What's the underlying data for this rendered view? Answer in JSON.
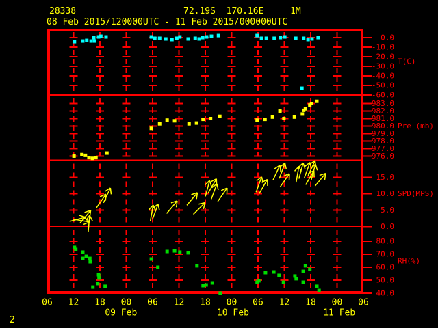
{
  "header": {
    "station_id": "28338",
    "location": "72.19S  170.16E",
    "elevation": "1M",
    "time_range": "08 Feb 2015/120000UTC - 11 Feb 2015/000000UTC"
  },
  "page_number": "2",
  "colors": {
    "background": "#000000",
    "frame": "#ff0000",
    "header_text": "#ffff00",
    "axis_text": "#ff0000",
    "temperature": "#00ffff",
    "pressure": "#ffff00",
    "wind": "#ffff00",
    "rh": "#00dd00"
  },
  "chart_data": {
    "type": "scatter",
    "title": "Surface meteogram station 28338",
    "x_axis": {
      "tlim": [
        6,
        78
      ],
      "tick_step_hours": 6,
      "tick_labels": [
        "06",
        "12",
        "18",
        "00",
        "06",
        "12",
        "18",
        "00",
        "06",
        "12",
        "18",
        "00",
        "06"
      ],
      "date_labels": [
        {
          "t": 22.8,
          "label": "09 Feb"
        },
        {
          "t": 48.3,
          "label": "10 Feb"
        },
        {
          "t": 72.5,
          "label": "11 Feb"
        }
      ]
    },
    "panels": [
      {
        "id": "temperature",
        "unit_label": "T(C)",
        "unit_label_level": -25,
        "ylim": [
          -60,
          9.3
        ],
        "yticks": [
          {
            "v": 0,
            "label": "0.0"
          },
          {
            "v": -10,
            "label": "-10.0"
          },
          {
            "v": -20,
            "label": "-20.0"
          },
          {
            "v": -30,
            "label": "-30.0"
          },
          {
            "v": -40,
            "label": "-40.0"
          },
          {
            "v": -50,
            "label": "-50.0"
          },
          {
            "v": -60,
            "label": "-60.0"
          }
        ],
        "style": "points",
        "color": "#00ffff",
        "points": [
          [
            12.2,
            -4.3
          ],
          [
            14.1,
            -3.6
          ],
          [
            15.0,
            -2.9
          ],
          [
            16.0,
            -3.6
          ],
          [
            16.8,
            -3.6
          ],
          [
            16.6,
            0.0
          ],
          [
            17.7,
            0.7
          ],
          [
            18.2,
            1.4
          ],
          [
            19.4,
            0.7
          ],
          [
            29.7,
            0.7
          ],
          [
            30.5,
            -0.7
          ],
          [
            31.6,
            -0.7
          ],
          [
            33.0,
            -1.4
          ],
          [
            34.4,
            -2.1
          ],
          [
            35.5,
            -0.7
          ],
          [
            36.2,
            0.7
          ],
          [
            38.1,
            -1.4
          ],
          [
            39.7,
            -0.7
          ],
          [
            40.6,
            -1.4
          ],
          [
            41.4,
            0.0
          ],
          [
            42.3,
            0.7
          ],
          [
            43.4,
            1.4
          ],
          [
            45.0,
            2.1
          ],
          [
            53.8,
            2.1
          ],
          [
            54.8,
            -0.7
          ],
          [
            55.9,
            -0.7
          ],
          [
            57.7,
            -0.7
          ],
          [
            59.1,
            0.0
          ],
          [
            60.1,
            0.7
          ],
          [
            62.6,
            -0.7
          ],
          [
            64.4,
            -0.7
          ],
          [
            65.4,
            -2.1
          ],
          [
            66.3,
            -1.4
          ],
          [
            67.7,
            0.0
          ],
          [
            64.0,
            -52.9
          ]
        ]
      },
      {
        "id": "pressure",
        "unit_label": "Pre (mb)",
        "unit_label_level": 980,
        "ylim": [
          975.45,
          984.14
        ],
        "yticks": [
          {
            "v": 983,
            "label": "983.0"
          },
          {
            "v": 982,
            "label": "982.0"
          },
          {
            "v": 981,
            "label": "981.0"
          },
          {
            "v": 980,
            "label": "980.0"
          },
          {
            "v": 979,
            "label": "979.0"
          },
          {
            "v": 978,
            "label": "978.0"
          },
          {
            "v": 977,
            "label": "977.0"
          },
          {
            "v": 976,
            "label": "976.0"
          }
        ],
        "style": "points",
        "color": "#ffff00",
        "points": [
          [
            12.1,
            976.0
          ],
          [
            13.9,
            976.2
          ],
          [
            14.7,
            976.1
          ],
          [
            15.5,
            975.8
          ],
          [
            16.3,
            975.7
          ],
          [
            17.1,
            975.8
          ],
          [
            19.6,
            976.4
          ],
          [
            29.7,
            979.7
          ],
          [
            31.6,
            980.3
          ],
          [
            33.3,
            980.8
          ],
          [
            35.0,
            980.7
          ],
          [
            38.3,
            980.3
          ],
          [
            40.0,
            980.4
          ],
          [
            41.5,
            980.9
          ],
          [
            43.2,
            981.0
          ],
          [
            45.3,
            981.3
          ],
          [
            53.8,
            980.8
          ],
          [
            55.6,
            980.9
          ],
          [
            57.3,
            981.2
          ],
          [
            59.0,
            982.0
          ],
          [
            59.9,
            981.0
          ],
          [
            62.3,
            981.2
          ],
          [
            64.1,
            981.6
          ],
          [
            64.4,
            982.1
          ],
          [
            64.8,
            982.3
          ],
          [
            65.8,
            982.8
          ],
          [
            66.2,
            983.0
          ],
          [
            67.4,
            983.3
          ]
        ]
      },
      {
        "id": "wind-speed",
        "unit_label": "SPD(MPS)",
        "unit_label_level": 10,
        "ylim": [
          0.1,
          20.21
        ],
        "yticks": [
          {
            "v": 15,
            "label": "15.0"
          },
          {
            "v": 10,
            "label": "10.0"
          },
          {
            "v": 5,
            "label": "5.0"
          },
          {
            "v": 0,
            "label": "0.0"
          }
        ],
        "style": "arrows",
        "color": "#ffff00",
        "arrows": [
          [
            12.9,
            2.2,
            75
          ],
          [
            13.8,
            1.8,
            100
          ],
          [
            14.7,
            3.0,
            40
          ],
          [
            15.5,
            0.9,
            5
          ],
          [
            18.3,
            7.8,
            35
          ],
          [
            19.6,
            9.5,
            25
          ],
          [
            29.8,
            4.1,
            10
          ],
          [
            30.6,
            4.5,
            20
          ],
          [
            34.4,
            5.9,
            40
          ],
          [
            39.0,
            8.4,
            40
          ],
          [
            40.6,
            5.5,
            45
          ],
          [
            42.5,
            11.6,
            15
          ],
          [
            43.6,
            12.4,
            30
          ],
          [
            44.0,
            10.7,
            20
          ],
          [
            45.9,
            9.7,
            35
          ],
          [
            54.2,
            12.8,
            20
          ],
          [
            55.2,
            12.2,
            30
          ],
          [
            58.2,
            16.4,
            25
          ],
          [
            59.5,
            17.0,
            20
          ],
          [
            60.1,
            14.1,
            35
          ],
          [
            63.0,
            15.9,
            10
          ],
          [
            63.8,
            17.0,
            15
          ],
          [
            65.2,
            17.2,
            20
          ],
          [
            65.8,
            14.9,
            30
          ],
          [
            66.2,
            17.8,
            25
          ],
          [
            66.6,
            16.6,
            15
          ],
          [
            68.2,
            14.3,
            40
          ]
        ]
      },
      {
        "id": "relative-humidity",
        "unit_label": "RH(%)",
        "unit_label_level": 64.7,
        "ylim": [
          39.47,
          91.58
        ],
        "yticks": [
          {
            "v": 80,
            "label": "80.0"
          },
          {
            "v": 70,
            "label": "70.0"
          },
          {
            "v": 60,
            "label": "60.0"
          },
          {
            "v": 50,
            "label": "50.0"
          },
          {
            "v": 40,
            "label": "40.0"
          }
        ],
        "style": "points",
        "color": "#00dd00",
        "points": [
          [
            12.2,
            75.3
          ],
          [
            12.5,
            73.7
          ],
          [
            14.1,
            71.6
          ],
          [
            14.1,
            66.8
          ],
          [
            14.9,
            68.4
          ],
          [
            15.7,
            66.8
          ],
          [
            15.8,
            64.2
          ],
          [
            16.4,
            44.7
          ],
          [
            17.5,
            47.4
          ],
          [
            17.7,
            54.2
          ],
          [
            17.8,
            51.6
          ],
          [
            19.2,
            45.3
          ],
          [
            29.7,
            66.3
          ],
          [
            31.2,
            60.0
          ],
          [
            33.3,
            72.1
          ],
          [
            35.0,
            72.6
          ],
          [
            36.2,
            71.6
          ],
          [
            38.1,
            71.1
          ],
          [
            40.1,
            61.1
          ],
          [
            41.5,
            45.8
          ],
          [
            42.2,
            46.3
          ],
          [
            43.6,
            47.9
          ],
          [
            45.4,
            40.0
          ],
          [
            53.8,
            48.4
          ],
          [
            54.2,
            49.5
          ],
          [
            55.7,
            55.8
          ],
          [
            57.6,
            56.3
          ],
          [
            58.8,
            53.7
          ],
          [
            59.8,
            48.4
          ],
          [
            62.4,
            53.2
          ],
          [
            62.7,
            51.1
          ],
          [
            64.3,
            48.4
          ],
          [
            64.3,
            56.8
          ],
          [
            64.8,
            61.1
          ],
          [
            65.8,
            58.4
          ],
          [
            67.4,
            45.3
          ],
          [
            67.9,
            42.1
          ]
        ]
      }
    ]
  }
}
